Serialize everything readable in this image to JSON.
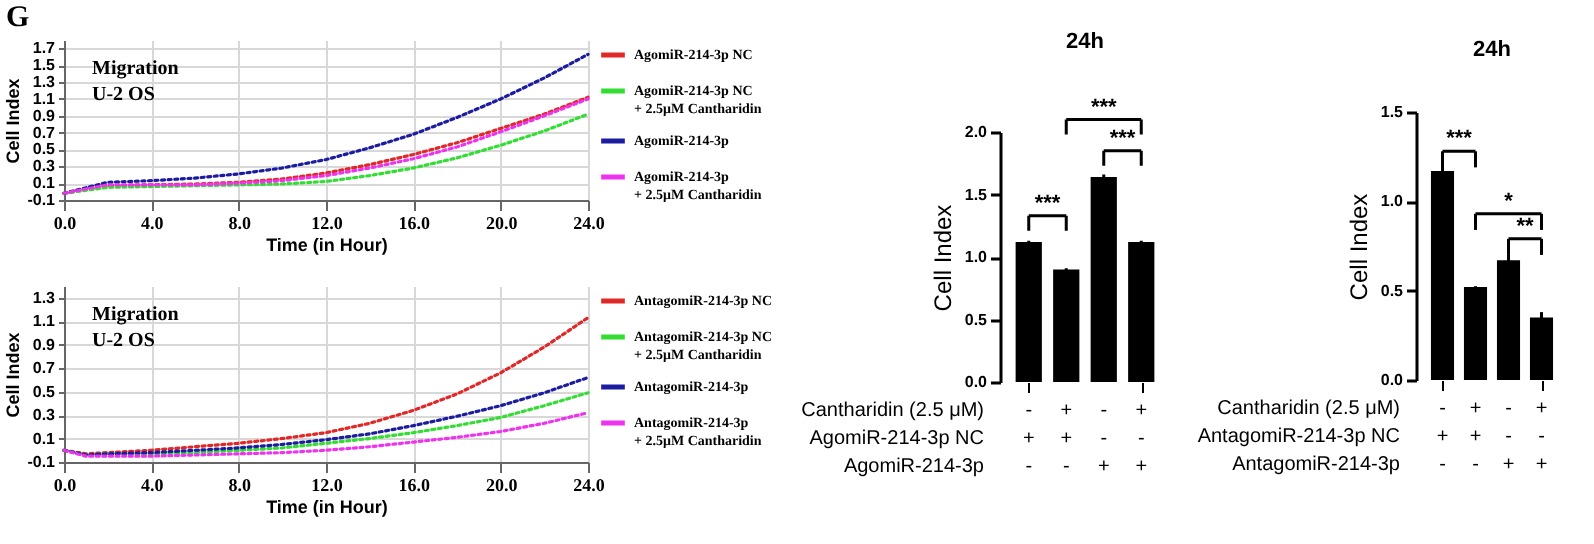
{
  "chart_data": [
    {
      "type": "line",
      "title": "G",
      "xlabel": "Time (in Hour)",
      "ylabel": "Cell Index",
      "annotations": [
        "Migration",
        "U-2 OS"
      ],
      "x": [
        0,
        2,
        4,
        6,
        8,
        10,
        12,
        14,
        16,
        18,
        20,
        22,
        24
      ],
      "xlim": [
        0,
        24
      ],
      "xticks": [
        {
          "value": 0,
          "label": "0.0"
        },
        {
          "value": 4,
          "label": "4.0"
        },
        {
          "value": 8,
          "label": "8.0"
        },
        {
          "value": 12,
          "label": "12.0"
        },
        {
          "value": 16,
          "label": "16.0"
        },
        {
          "value": 20,
          "label": "20.0"
        },
        {
          "value": 24,
          "label": "24.0"
        }
      ],
      "ylim": [
        -0.1,
        1.8
      ],
      "yticks": [
        -0.1,
        0.1,
        0.3,
        0.5,
        0.7,
        0.9,
        1.1,
        1.3,
        1.5,
        1.7
      ],
      "grid": true,
      "legend": "right",
      "line_style": "dotted",
      "series": [
        {
          "name": "AgomiR-214-3p NC",
          "color": "#e02828",
          "values": [
            -0.02,
            0.07,
            0.08,
            0.09,
            0.11,
            0.15,
            0.22,
            0.32,
            0.44,
            0.58,
            0.75,
            0.92,
            1.12
          ]
        },
        {
          "name": "AgomiR-214-3p NC + 2.5μM Cantharidin",
          "color": "#33dd33",
          "values": [
            -0.02,
            0.05,
            0.06,
            0.07,
            0.08,
            0.09,
            0.12,
            0.19,
            0.28,
            0.4,
            0.55,
            0.72,
            0.92
          ]
        },
        {
          "name": "AgomiR-214-3p",
          "color": "#1c1ca0",
          "values": [
            -0.02,
            0.11,
            0.13,
            0.16,
            0.21,
            0.28,
            0.38,
            0.52,
            0.68,
            0.88,
            1.1,
            1.35,
            1.63
          ]
        },
        {
          "name": "AgomiR-214-3p + 2.5μM Cantharidin",
          "color": "#ee33ee",
          "values": [
            -0.02,
            0.08,
            0.08,
            0.08,
            0.1,
            0.13,
            0.19,
            0.28,
            0.39,
            0.53,
            0.71,
            0.9,
            1.1
          ]
        }
      ]
    },
    {
      "type": "line",
      "xlabel": "Time (in Hour)",
      "ylabel": "Cell Index",
      "annotations": [
        "Migration",
        "U-2 OS"
      ],
      "x": [
        0,
        1,
        2,
        4,
        6,
        8,
        10,
        12,
        14,
        16,
        18,
        20,
        22,
        24
      ],
      "xlim": [
        0,
        24
      ],
      "xticks": [
        {
          "value": 0,
          "label": "0.0"
        },
        {
          "value": 4,
          "label": "4.0"
        },
        {
          "value": 8,
          "label": "8.0"
        },
        {
          "value": 12,
          "label": "12.0"
        },
        {
          "value": 16,
          "label": "16.0"
        },
        {
          "value": 20,
          "label": "20.0"
        },
        {
          "value": 24,
          "label": "24.0"
        }
      ],
      "ylim": [
        -0.1,
        1.4
      ],
      "yticks": [
        -0.1,
        0.1,
        0.3,
        0.5,
        0.7,
        0.9,
        1.1,
        1.3
      ],
      "grid": true,
      "legend": "right",
      "line_style": "dotted",
      "series": [
        {
          "name": "AntagomiR-214-3p NC",
          "color": "#e02828",
          "values": [
            0.0,
            -0.03,
            -0.02,
            0.0,
            0.03,
            0.06,
            0.1,
            0.15,
            0.23,
            0.34,
            0.48,
            0.66,
            0.88,
            1.13
          ]
        },
        {
          "name": "AntagomiR-214-3p NC + 2.5μM Cantharidin",
          "color": "#33dd33",
          "values": [
            0.0,
            -0.04,
            -0.03,
            -0.03,
            -0.02,
            0.0,
            0.02,
            0.06,
            0.1,
            0.15,
            0.21,
            0.28,
            0.38,
            0.49
          ]
        },
        {
          "name": "AntagomiR-214-3p",
          "color": "#1c1ca0",
          "values": [
            0.0,
            -0.04,
            -0.03,
            -0.02,
            0.0,
            0.02,
            0.05,
            0.09,
            0.14,
            0.21,
            0.29,
            0.38,
            0.49,
            0.62
          ]
        },
        {
          "name": "AntagomiR-214-3p + 2.5μM Cantharidin",
          "color": "#ee33ee",
          "values": [
            0.0,
            -0.05,
            -0.05,
            -0.05,
            -0.04,
            -0.03,
            -0.02,
            0.0,
            0.03,
            0.07,
            0.11,
            0.16,
            0.23,
            0.32
          ]
        }
      ]
    },
    {
      "type": "bar",
      "title": "24h",
      "ylabel": "Cell Index",
      "categories": [
        "-\n+\n-",
        "+\n+\n-",
        "-\n-\n+",
        "+\n-\n+"
      ],
      "values": [
        1.12,
        0.9,
        1.64,
        1.12
      ],
      "errors": [
        0.01,
        0.01,
        0.02,
        0.01
      ],
      "color": "#000000",
      "ylim": [
        0,
        2
      ],
      "yticks": [
        {
          "value": 0,
          "label": "0.0"
        },
        {
          "value": 0.5,
          "label": "0.5"
        },
        {
          "value": 1,
          "label": "1.0"
        },
        {
          "value": 1.5,
          "label": "1.5"
        },
        {
          "value": 2,
          "label": "2.0"
        }
      ],
      "annotations": [
        "Cantharidin (2.5 μM)",
        "AgomiR-214-3p NC",
        "AgomiR-214-3p",
        "***",
        "***",
        "***"
      ]
    },
    {
      "type": "bar",
      "title": "24h",
      "ylabel": "Cell Index",
      "categories": [
        "-\n+\n-",
        "+\n+\n-",
        "-\n-\n+",
        "+\n-\n+"
      ],
      "values": [
        1.17,
        0.52,
        0.67,
        0.35
      ],
      "errors": [
        0.03,
        0.005,
        0.03,
        0.03
      ],
      "color": "#000000",
      "ylim": [
        0,
        1.5
      ],
      "yticks": [
        {
          "value": 0,
          "label": "0.0"
        },
        {
          "value": 0.5,
          "label": "0.5"
        },
        {
          "value": 1,
          "label": "1.0"
        },
        {
          "value": 1.5,
          "label": "1.5"
        }
      ],
      "annotations": [
        "Cantharidin (2.5 μM)",
        "AntagomiR-214-3p NC",
        "AntagomiR-214-3p",
        "***",
        "*",
        "**"
      ]
    }
  ]
}
